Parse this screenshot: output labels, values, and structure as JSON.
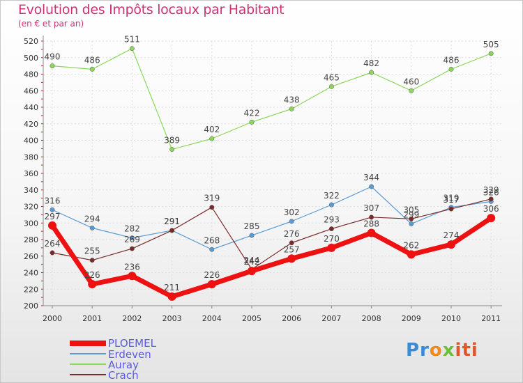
{
  "chart_data": {
    "type": "line",
    "title": "Evolution des Impôts locaux par Habitant",
    "subtitle": "(en € et par an)",
    "xlabel": "",
    "ylabel": "",
    "ylim": [
      200,
      520
    ],
    "yticks": [
      200,
      220,
      240,
      260,
      280,
      300,
      320,
      340,
      360,
      380,
      400,
      420,
      440,
      460,
      480,
      500,
      520
    ],
    "categories": [
      "2000",
      "2001",
      "2002",
      "2003",
      "2004",
      "2005",
      "2006",
      "2007",
      "2008",
      "2009",
      "2010",
      "2011"
    ],
    "series": [
      {
        "name": "Auray",
        "color": "#8cd65a",
        "values": [
          490,
          486,
          511,
          389,
          402,
          422,
          438,
          465,
          482,
          460,
          486,
          505
        ]
      },
      {
        "name": "Erdeven",
        "color": "#5b9bd5",
        "values": [
          316,
          294,
          282,
          291,
          268,
          285,
          302,
          322,
          344,
          299,
          319,
          326
        ]
      },
      {
        "name": "Crach",
        "color": "#7a2a2a",
        "values": [
          264,
          255,
          269,
          291,
          319,
          244,
          276,
          293,
          307,
          305,
          317,
          329
        ]
      },
      {
        "name": "PLOEMEL",
        "color": "#ee1111",
        "values": [
          297,
          226,
          236,
          211,
          226,
          242,
          257,
          270,
          288,
          262,
          274,
          306
        ]
      }
    ],
    "legend": [
      "PLOEMEL",
      "Erdeven",
      "Auray",
      "Crach"
    ],
    "legend_position": "bottom-left"
  },
  "logo": {
    "p1": "Pr",
    "p2": "o",
    "p3": "x",
    "p4": "iti"
  }
}
